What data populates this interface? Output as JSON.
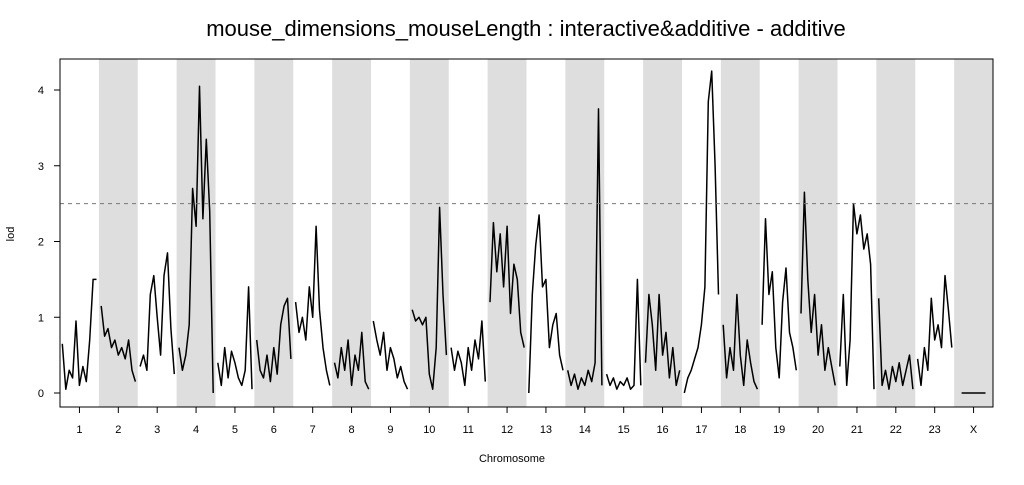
{
  "chart_data": {
    "type": "line",
    "title": "mouse_dimensions_mouseLength : interactive&additive - additive",
    "xlabel": "Chromosome",
    "ylabel": "lod",
    "ylim": [
      0,
      4.4
    ],
    "yticks": [
      0,
      1,
      2,
      3,
      4
    ],
    "threshold": 2.5,
    "threshold_style": "dashed",
    "band_color": "#dedede",
    "line_color": "#000000",
    "grid": false,
    "legend": "none",
    "chromosomes": [
      {
        "label": "1",
        "shaded": false,
        "x": [
          0,
          0.1,
          0.2,
          0.3,
          0.4,
          0.5,
          0.6,
          0.7,
          0.8,
          0.9,
          1.0
        ],
        "values": [
          0.65,
          0.05,
          0.3,
          0.2,
          0.95,
          0.1,
          0.35,
          0.15,
          0.7,
          1.5,
          1.5
        ]
      },
      {
        "label": "2",
        "shaded": true,
        "x": [
          0,
          0.1,
          0.2,
          0.3,
          0.4,
          0.5,
          0.6,
          0.7,
          0.8,
          0.9,
          1.0
        ],
        "values": [
          1.15,
          0.75,
          0.85,
          0.6,
          0.7,
          0.5,
          0.6,
          0.45,
          0.7,
          0.3,
          0.15
        ]
      },
      {
        "label": "3",
        "shaded": false,
        "x": [
          0,
          0.1,
          0.2,
          0.3,
          0.4,
          0.5,
          0.6,
          0.7,
          0.8,
          0.9,
          1.0
        ],
        "values": [
          0.35,
          0.5,
          0.3,
          1.3,
          1.55,
          1.0,
          0.5,
          1.55,
          1.85,
          0.85,
          0.25
        ]
      },
      {
        "label": "4",
        "shaded": true,
        "x": [
          0,
          0.1,
          0.2,
          0.3,
          0.4,
          0.5,
          0.6,
          0.7,
          0.8,
          0.9,
          1.0
        ],
        "values": [
          0.6,
          0.3,
          0.5,
          0.9,
          2.7,
          2.2,
          4.05,
          2.3,
          3.35,
          2.4,
          0.0
        ]
      },
      {
        "label": "5",
        "shaded": false,
        "x": [
          0,
          0.1,
          0.2,
          0.3,
          0.4,
          0.5,
          0.6,
          0.7,
          0.8,
          0.9,
          1.0
        ],
        "values": [
          0.4,
          0.1,
          0.6,
          0.2,
          0.55,
          0.4,
          0.2,
          0.1,
          0.3,
          1.4,
          0.05
        ]
      },
      {
        "label": "6",
        "shaded": true,
        "x": [
          0,
          0.1,
          0.2,
          0.3,
          0.4,
          0.5,
          0.6,
          0.7,
          0.8,
          0.9,
          1.0
        ],
        "values": [
          0.7,
          0.3,
          0.2,
          0.5,
          0.15,
          0.6,
          0.25,
          0.9,
          1.15,
          1.25,
          0.45
        ]
      },
      {
        "label": "7",
        "shaded": false,
        "x": [
          0,
          0.1,
          0.2,
          0.3,
          0.4,
          0.5,
          0.6,
          0.7,
          0.8,
          0.9,
          1.0
        ],
        "values": [
          1.2,
          0.8,
          1.0,
          0.7,
          1.4,
          1.0,
          2.2,
          1.1,
          0.6,
          0.3,
          0.1
        ]
      },
      {
        "label": "8",
        "shaded": true,
        "x": [
          0,
          0.1,
          0.2,
          0.3,
          0.4,
          0.5,
          0.6,
          0.7,
          0.8,
          0.9,
          1.0
        ],
        "values": [
          0.4,
          0.2,
          0.6,
          0.3,
          0.7,
          0.1,
          0.5,
          0.3,
          0.8,
          0.15,
          0.05
        ]
      },
      {
        "label": "9",
        "shaded": false,
        "x": [
          0,
          0.1,
          0.2,
          0.3,
          0.4,
          0.5,
          0.6,
          0.7,
          0.8,
          0.9,
          1.0
        ],
        "values": [
          0.95,
          0.7,
          0.5,
          0.8,
          0.3,
          0.6,
          0.45,
          0.2,
          0.35,
          0.15,
          0.05
        ]
      },
      {
        "label": "10",
        "shaded": true,
        "x": [
          0,
          0.1,
          0.2,
          0.3,
          0.4,
          0.5,
          0.6,
          0.7,
          0.8,
          0.9,
          1.0
        ],
        "values": [
          1.1,
          0.95,
          1.0,
          0.9,
          1.0,
          0.25,
          0.05,
          0.6,
          2.45,
          1.3,
          0.5
        ]
      },
      {
        "label": "11",
        "shaded": false,
        "x": [
          0,
          0.1,
          0.2,
          0.3,
          0.4,
          0.5,
          0.6,
          0.7,
          0.8,
          0.9,
          1.0
        ],
        "values": [
          0.6,
          0.3,
          0.55,
          0.4,
          0.1,
          0.6,
          0.3,
          0.7,
          0.45,
          0.95,
          0.15
        ]
      },
      {
        "label": "12",
        "shaded": true,
        "x": [
          0,
          0.1,
          0.2,
          0.3,
          0.4,
          0.5,
          0.6,
          0.7,
          0.8,
          0.9,
          1.0
        ],
        "values": [
          1.2,
          2.25,
          1.6,
          2.1,
          1.4,
          2.2,
          1.05,
          1.7,
          1.5,
          0.8,
          0.6
        ]
      },
      {
        "label": "13",
        "shaded": false,
        "x": [
          0,
          0.1,
          0.2,
          0.3,
          0.4,
          0.5,
          0.6,
          0.7,
          0.8,
          0.9,
          1.0
        ],
        "values": [
          0.0,
          1.3,
          1.95,
          2.35,
          1.4,
          1.5,
          0.6,
          0.9,
          1.05,
          0.5,
          0.3
        ]
      },
      {
        "label": "14",
        "shaded": true,
        "x": [
          0,
          0.1,
          0.2,
          0.3,
          0.4,
          0.5,
          0.6,
          0.7,
          0.8,
          0.9,
          1.0
        ],
        "values": [
          0.3,
          0.1,
          0.25,
          0.05,
          0.2,
          0.1,
          0.3,
          0.15,
          0.4,
          3.75,
          0.1
        ]
      },
      {
        "label": "15",
        "shaded": false,
        "x": [
          0,
          0.1,
          0.2,
          0.3,
          0.4,
          0.5,
          0.6,
          0.7,
          0.8,
          0.9,
          1.0
        ],
        "values": [
          0.25,
          0.1,
          0.2,
          0.05,
          0.15,
          0.1,
          0.2,
          0.05,
          0.1,
          1.5,
          0.1
        ]
      },
      {
        "label": "16",
        "shaded": true,
        "x": [
          0,
          0.1,
          0.2,
          0.3,
          0.4,
          0.5,
          0.6,
          0.7,
          0.8,
          0.9,
          1.0
        ],
        "values": [
          0.4,
          1.3,
          0.9,
          0.3,
          1.3,
          0.5,
          0.8,
          0.2,
          0.6,
          0.1,
          0.3
        ]
      },
      {
        "label": "17",
        "shaded": false,
        "x": [
          0,
          0.1,
          0.2,
          0.3,
          0.4,
          0.5,
          0.6,
          0.7,
          0.8,
          0.9,
          1.0
        ],
        "values": [
          0.0,
          0.2,
          0.3,
          0.45,
          0.6,
          0.9,
          1.4,
          3.85,
          4.25,
          3.0,
          1.3
        ]
      },
      {
        "label": "18",
        "shaded": true,
        "x": [
          0,
          0.1,
          0.2,
          0.3,
          0.4,
          0.5,
          0.6,
          0.7,
          0.8,
          0.9,
          1.0
        ],
        "values": [
          0.9,
          0.2,
          0.6,
          0.3,
          1.3,
          0.5,
          0.1,
          0.7,
          0.4,
          0.15,
          0.05
        ]
      },
      {
        "label": "19",
        "shaded": false,
        "x": [
          0,
          0.1,
          0.2,
          0.3,
          0.4,
          0.5,
          0.6,
          0.7,
          0.8,
          0.9,
          1.0
        ],
        "values": [
          0.9,
          2.3,
          1.3,
          1.6,
          0.6,
          0.2,
          1.2,
          1.65,
          0.8,
          0.6,
          0.3
        ]
      },
      {
        "label": "20",
        "shaded": true,
        "x": [
          0,
          0.1,
          0.2,
          0.3,
          0.4,
          0.5,
          0.6,
          0.7,
          0.8,
          0.9,
          1.0
        ],
        "values": [
          1.05,
          2.65,
          1.5,
          0.8,
          1.3,
          0.5,
          0.9,
          0.3,
          0.6,
          0.35,
          0.1
        ]
      },
      {
        "label": "21",
        "shaded": false,
        "x": [
          0,
          0.1,
          0.2,
          0.3,
          0.4,
          0.5,
          0.6,
          0.7,
          0.8,
          0.9,
          1.0
        ],
        "values": [
          0.35,
          1.3,
          0.1,
          0.7,
          2.5,
          2.1,
          2.35,
          1.9,
          2.1,
          1.7,
          0.05
        ]
      },
      {
        "label": "22",
        "shaded": true,
        "x": [
          0,
          0.1,
          0.2,
          0.3,
          0.4,
          0.5,
          0.6,
          0.7,
          0.8,
          0.9,
          1.0
        ],
        "values": [
          1.25,
          0.1,
          0.3,
          0.05,
          0.35,
          0.15,
          0.4,
          0.1,
          0.3,
          0.5,
          0.05
        ]
      },
      {
        "label": "23",
        "shaded": false,
        "x": [
          0,
          0.1,
          0.2,
          0.3,
          0.4,
          0.5,
          0.6,
          0.7,
          0.8,
          0.9,
          1.0
        ],
        "values": [
          0.45,
          0.1,
          0.6,
          0.3,
          1.25,
          0.7,
          0.9,
          0.6,
          1.55,
          1.1,
          0.6
        ]
      },
      {
        "label": "X",
        "shaded": true,
        "x": [
          0.15,
          0.85
        ],
        "values": [
          0.0,
          0.0
        ]
      }
    ]
  }
}
